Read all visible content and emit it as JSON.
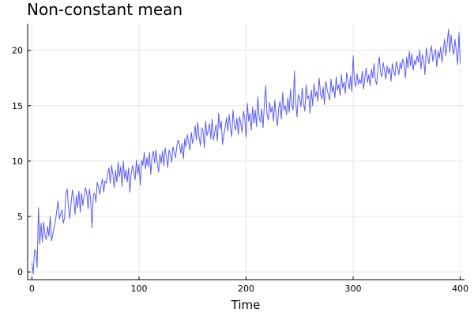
{
  "chart_data": {
    "type": "line",
    "title": "Non-constant mean",
    "xlabel": "Time",
    "ylabel": "",
    "xlim": [
      -4,
      404
    ],
    "ylim": [
      -0.7,
      22.4
    ],
    "xticks": [
      0,
      100,
      200,
      300,
      400
    ],
    "xtick_labels": [
      "0",
      "100",
      "200",
      "300",
      "400"
    ],
    "yticks": [
      0,
      5,
      10,
      15,
      20
    ],
    "ytick_labels": [
      "0",
      "5",
      "10",
      "15",
      "20"
    ],
    "grid": true,
    "legend": "none",
    "line_color": "#5a5cf5",
    "series": [
      {
        "values": [
          0.8,
          -0.2,
          2.0,
          1.9,
          0.4,
          5.8,
          2.5,
          4.4,
          2.7,
          4.5,
          3.3,
          2.9,
          4.1,
          3.2,
          5.0,
          2.8,
          3.4,
          4.0,
          4.6,
          5.5,
          6.4,
          4.8,
          5.2,
          5.6,
          4.4,
          4.9,
          7.1,
          7.5,
          5.9,
          4.8,
          6.2,
          7.4,
          6.6,
          5.2,
          6.9,
          5.8,
          7.3,
          5.4,
          7.1,
          6.0,
          6.8,
          7.6,
          7.1,
          5.7,
          7.5,
          6.5,
          4.0,
          6.9,
          7.1,
          6.3,
          8.1,
          7.6,
          7.0,
          7.9,
          8.4,
          7.2,
          8.2,
          8.0,
          8.9,
          9.4,
          8.0,
          9.6,
          8.8,
          7.6,
          9.2,
          8.1,
          9.9,
          8.6,
          9.5,
          7.7,
          10.0,
          8.4,
          9.2,
          8.1,
          9.4,
          7.2,
          8.8,
          9.6,
          9.0,
          8.3,
          10.1,
          8.8,
          9.7,
          7.8,
          10.1,
          9.6,
          10.8,
          9.3,
          10.3,
          9.5,
          10.8,
          8.8,
          10.4,
          10.9,
          9.8,
          11.0,
          9.9,
          9.0,
          10.6,
          9.8,
          10.9,
          9.6,
          11.2,
          10.4,
          9.4,
          11.0,
          10.6,
          9.9,
          11.3,
          10.8,
          10.3,
          11.4,
          11.9,
          11.5,
          10.7,
          11.6,
          10.2,
          12.0,
          11.3,
          12.4,
          11.7,
          11.0,
          12.6,
          11.6,
          12.1,
          13.2,
          11.9,
          13.5,
          12.2,
          11.4,
          13.0,
          12.8,
          11.2,
          13.6,
          12.3,
          12.7,
          13.4,
          12.0,
          13.8,
          11.9,
          12.6,
          13.3,
          11.8,
          14.3,
          12.9,
          13.6,
          11.5,
          12.4,
          13.1,
          13.9,
          12.7,
          14.2,
          13.0,
          12.2,
          14.6,
          13.3,
          12.8,
          13.9,
          12.4,
          14.0,
          13.3,
          12.6,
          14.5,
          13.9,
          12.1,
          15.2,
          13.6,
          14.3,
          12.8,
          14.9,
          13.4,
          14.6,
          13.1,
          15.8,
          14.0,
          13.5,
          14.7,
          13.0,
          15.1,
          16.8,
          14.2,
          13.7,
          15.3,
          14.4,
          14.9,
          13.6,
          15.5,
          14.1,
          13.2,
          14.8,
          15.4,
          13.8,
          16.2,
          14.6,
          15.0,
          14.2,
          15.7,
          14.4,
          16.5,
          15.1,
          14.6,
          18.1,
          15.3,
          14.0,
          16.0,
          15.7,
          14.9,
          16.6,
          15.2,
          14.5,
          16.9,
          15.6,
          15.9,
          14.3,
          16.4,
          15.0,
          17.0,
          15.8,
          16.3,
          15.4,
          17.5,
          16.1,
          15.6,
          16.7,
          15.1,
          17.2,
          16.5,
          16.0,
          15.5,
          17.4,
          16.2,
          16.8,
          15.7,
          17.6,
          16.4,
          16.9,
          15.9,
          17.8,
          16.6,
          17.1,
          16.1,
          18.0,
          17.3,
          16.5,
          17.7,
          16.3,
          19.5,
          17.2,
          16.7,
          17.9,
          16.9,
          17.4,
          17.0,
          18.1,
          16.5,
          17.6,
          18.4,
          17.1,
          17.8,
          16.8,
          18.3,
          17.5,
          18.8,
          17.3,
          16.9,
          18.5,
          19.4,
          18.0,
          17.6,
          18.9,
          18.2,
          17.4,
          18.6,
          17.9,
          18.4,
          17.2,
          18.8,
          18.1,
          17.7,
          19.0,
          18.5,
          17.8,
          18.9,
          18.3,
          19.2,
          18.7,
          17.5,
          19.4,
          18.4,
          19.9,
          18.6,
          19.7,
          18.2,
          19.1,
          18.7,
          19.5,
          18.9,
          20.0,
          18.3,
          19.6,
          19.1,
          17.8,
          20.2,
          19.4,
          18.8,
          19.8,
          20.4,
          19.0,
          19.7,
          20.1,
          18.5,
          19.9,
          19.3,
          20.3,
          18.9,
          20.0,
          21.0,
          19.5,
          20.6,
          21.9,
          19.8,
          21.4,
          20.2,
          19.6,
          21.0,
          19.9,
          18.7,
          21.6,
          18.8
        ]
      }
    ]
  }
}
